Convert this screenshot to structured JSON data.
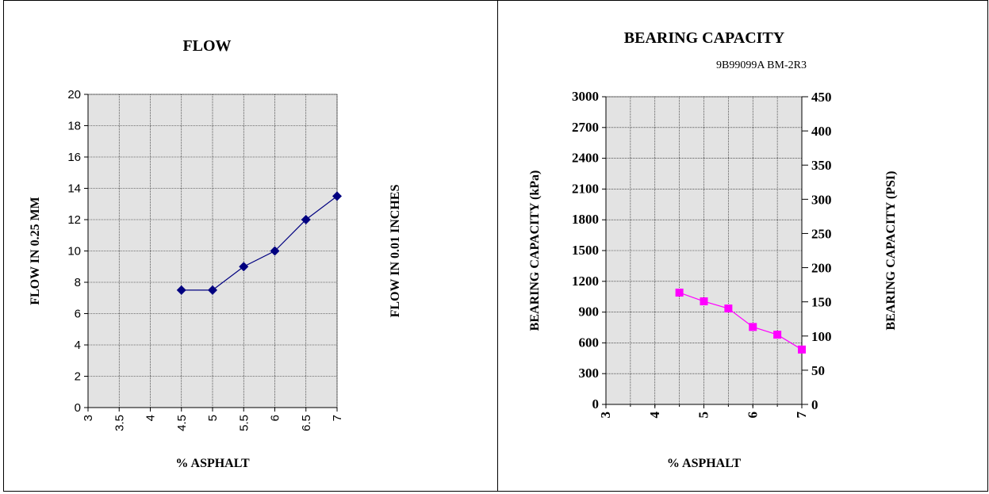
{
  "chart_data": [
    {
      "type": "line",
      "title": "FLOW",
      "xlabel": "% ASPHALT",
      "ylabel": "FLOW IN 0.25 MM",
      "y2label": "FLOW IN 0.01 INCHES",
      "xlim": [
        3,
        7
      ],
      "ylim": [
        0,
        20
      ],
      "x_ticks": [
        "3",
        "3.5",
        "4",
        "4.5",
        "5",
        "5.5",
        "6",
        "6.5",
        "7"
      ],
      "y_ticks": [
        "0",
        "2",
        "4",
        "6",
        "8",
        "10",
        "12",
        "14",
        "16",
        "18",
        "20"
      ],
      "grid": true,
      "series": [
        {
          "color": "#000080",
          "marker": "diamond",
          "x": [
            4.5,
            5,
            5.5,
            6,
            6.5,
            7
          ],
          "y": [
            7.5,
            7.5,
            9,
            10,
            12,
            13.5
          ]
        }
      ]
    },
    {
      "type": "line",
      "title": "BEARING CAPACITY",
      "subtitle": "9B99099A   BM-2R3",
      "xlabel": "% ASPHALT",
      "ylabel": "BEARING CAPACITY (kPa)",
      "y2label": "BEARING CAPACITY (PSI)",
      "xlim": [
        3,
        7
      ],
      "ylim": [
        0,
        3000
      ],
      "y2lim": [
        0,
        450
      ],
      "x_ticks": [
        "3",
        "4",
        "5",
        "6",
        "7"
      ],
      "y_ticks": [
        "0",
        "300",
        "600",
        "900",
        "1200",
        "1500",
        "1800",
        "2100",
        "2400",
        "2700",
        "3000"
      ],
      "y2_ticks": [
        "0",
        "50",
        "100",
        "150",
        "200",
        "250",
        "300",
        "350",
        "400",
        "450"
      ],
      "grid": true,
      "series": [
        {
          "color": "#ff00ff",
          "marker": "square",
          "x": [
            4.5,
            5,
            5.5,
            6,
            6.5,
            7
          ],
          "y": [
            1090,
            1005,
            935,
            755,
            680,
            535
          ]
        }
      ]
    }
  ]
}
